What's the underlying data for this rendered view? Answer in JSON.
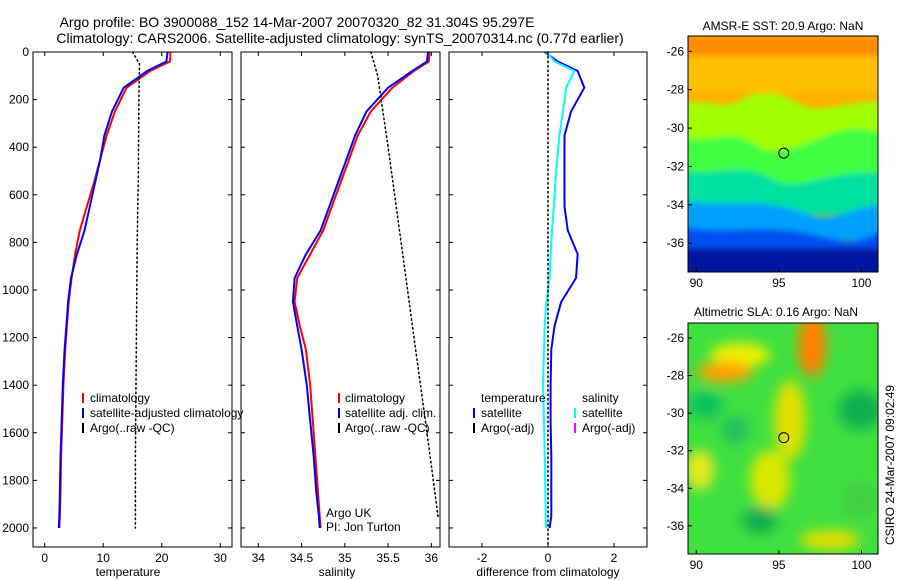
{
  "header": {
    "title_line1": "Argo profile: BO 3900088_152 14-Mar-2007 20070320_82 31.304S 95.297E",
    "title_line2": "Climatology: CARS2006. Satellite-adjusted climatology: synTS_20070314.nc (0.77d earlier)"
  },
  "side_label": "CSIRO 24-Mar-2007 09:02:49",
  "colors": {
    "red": "#ff0000",
    "blue": "#0000ff",
    "cyan": "#00ffff",
    "magenta": "#ff00ff",
    "black": "#000000"
  },
  "chart_data": [
    {
      "id": "temperature",
      "type": "line",
      "xlabel": "temperature",
      "xlim": [
        -2,
        32
      ],
      "ylim": [
        2080,
        0
      ],
      "xticks": [
        0,
        10,
        20,
        30
      ],
      "yticks": [
        0,
        200,
        400,
        600,
        800,
        1000,
        1200,
        1400,
        1600,
        1800,
        2000
      ],
      "y_reversed": true,
      "legend": [
        "climatology",
        "satellite-adjusted climatology",
        "Argo(..raw -QC)"
      ],
      "series": [
        {
          "name": "climatology",
          "color": "#ff0000",
          "style": "solid",
          "x": [
            21.5,
            21.4,
            18,
            14,
            12,
            10.6,
            9.5,
            8.4,
            7.2,
            6,
            5.2,
            4.6,
            4.1,
            3.8,
            3.5,
            3.2,
            3,
            2.8,
            2.7,
            2.6,
            2.5
          ],
          "y": [
            0,
            40,
            80,
            150,
            250,
            350,
            450,
            550,
            650,
            750,
            850,
            950,
            1050,
            1150,
            1250,
            1400,
            1550,
            1700,
            1850,
            1950,
            2000
          ]
        },
        {
          "name": "satellite-adjusted climatology",
          "color": "#0000ff",
          "style": "solid",
          "x": [
            21,
            20.8,
            17.5,
            13.5,
            11.5,
            10.2,
            9.5,
            8.6,
            7.7,
            6.8,
            5.5,
            4.5,
            4,
            3.7,
            3.4,
            3.1,
            2.9,
            2.7,
            2.6,
            2.5,
            2.4
          ],
          "y": [
            0,
            40,
            80,
            150,
            250,
            350,
            450,
            550,
            650,
            750,
            850,
            950,
            1050,
            1150,
            1250,
            1400,
            1550,
            1700,
            1850,
            1950,
            2000
          ]
        },
        {
          "name": "Argo(..raw -QC)",
          "color": "#000000",
          "style": "dotted",
          "x": [
            15,
            16.2,
            16.1,
            16,
            15.8,
            15.7,
            15.6,
            15.5,
            15.5
          ],
          "y": [
            0,
            50,
            200,
            500,
            800,
            1100,
            1400,
            1700,
            2000
          ]
        }
      ]
    },
    {
      "id": "salinity",
      "type": "line",
      "xlabel": "salinity",
      "xlim": [
        33.8,
        36.1
      ],
      "ylim": [
        2080,
        0
      ],
      "xticks": [
        34,
        34.5,
        35,
        35.5,
        36
      ],
      "yticks": [
        0,
        200,
        400,
        600,
        800,
        1000,
        1200,
        1400,
        1600,
        1800,
        2000
      ],
      "y_reversed": true,
      "legend": [
        "climatology",
        "satellite adj. clim.",
        "Argo(..raw -QC)"
      ],
      "annotation": [
        "Argo UK",
        "PI: Jon Turton"
      ],
      "series": [
        {
          "name": "climatology",
          "color": "#ff0000",
          "style": "solid",
          "x": [
            35.98,
            35.97,
            35.8,
            35.55,
            35.3,
            35.15,
            35.05,
            34.95,
            34.85,
            34.75,
            34.6,
            34.45,
            34.42,
            34.48,
            34.55,
            34.6,
            34.63,
            34.66,
            34.69,
            34.71,
            34.72
          ],
          "y": [
            0,
            40,
            80,
            150,
            250,
            350,
            450,
            550,
            650,
            750,
            850,
            950,
            1050,
            1150,
            1250,
            1400,
            1550,
            1700,
            1850,
            1950,
            2000
          ]
        },
        {
          "name": "satellite adj. clim.",
          "color": "#0000ff",
          "style": "solid",
          "x": [
            35.96,
            35.95,
            35.78,
            35.5,
            35.25,
            35.12,
            35.02,
            34.92,
            34.82,
            34.72,
            34.55,
            34.42,
            34.4,
            34.45,
            34.5,
            34.56,
            34.6,
            34.64,
            34.67,
            34.7,
            34.71
          ],
          "y": [
            0,
            40,
            80,
            150,
            250,
            350,
            450,
            550,
            650,
            750,
            850,
            950,
            1050,
            1150,
            1250,
            1400,
            1550,
            1700,
            1850,
            1950,
            2000
          ]
        },
        {
          "name": "Argo(..raw -QC)",
          "color": "#000000",
          "style": "dotted",
          "x": [
            35.3,
            35.38,
            35.5,
            35.65,
            35.8,
            35.95,
            36.08
          ],
          "y": [
            0,
            100,
            400,
            800,
            1200,
            1600,
            1960
          ]
        }
      ]
    },
    {
      "id": "difference",
      "type": "line",
      "xlabel": "difference from climatology",
      "xlim": [
        -3,
        3
      ],
      "ylim": [
        2080,
        0
      ],
      "xticks": [
        -2,
        0,
        2
      ],
      "yticks": [
        0,
        200,
        400,
        600,
        800,
        1000,
        1200,
        1400,
        1600,
        1800,
        2000
      ],
      "y_reversed": true,
      "legend_groups": [
        {
          "title": "temperature",
          "entries": [
            "satellite",
            "Argo(-adj)"
          ]
        },
        {
          "title": "salinity",
          "entries": [
            "satellite",
            "Argo(-adj)"
          ]
        }
      ],
      "series": [
        {
          "name": "temperature satellite",
          "color": "#0000ff",
          "style": "solid",
          "x": [
            -0.1,
            0.3,
            0.9,
            1.1,
            0.7,
            0.5,
            0.5,
            0.5,
            0.5,
            0.6,
            0.9,
            0.85,
            0.4,
            0.2,
            0.1,
            0.08,
            0.08,
            0.1,
            0.1,
            0.1,
            0.05
          ],
          "y": [
            0,
            40,
            80,
            150,
            250,
            350,
            450,
            550,
            650,
            750,
            850,
            950,
            1050,
            1150,
            1250,
            1400,
            1550,
            1700,
            1850,
            1950,
            2000
          ]
        },
        {
          "name": "salinity satellite",
          "color": "#00ffff",
          "style": "solid",
          "x": [
            -0.05,
            0.2,
            0.8,
            0.55,
            0.45,
            0.35,
            0.28,
            0.22,
            0.18,
            0.12,
            0.08,
            0.05,
            -0.05,
            -0.1,
            -0.12,
            -0.15,
            -0.12,
            -0.1,
            -0.08,
            -0.07,
            -0.06
          ],
          "y": [
            0,
            40,
            80,
            150,
            250,
            350,
            450,
            550,
            650,
            750,
            850,
            950,
            1050,
            1150,
            1250,
            1400,
            1550,
            1700,
            1850,
            1950,
            2000
          ]
        },
        {
          "name": "zero line",
          "color": "#000000",
          "style": "dotted",
          "x": [
            0,
            0
          ],
          "y": [
            0,
            2080
          ]
        }
      ]
    },
    {
      "id": "sst-map",
      "type": "heatmap",
      "title": "AMSR-E SST: 20.9 Argo: NaN",
      "xlim": [
        89.5,
        101
      ],
      "ylim": [
        -37.5,
        -25.2
      ],
      "xticks": [
        90,
        95,
        100
      ],
      "yticks": [
        -26,
        -28,
        -30,
        -32,
        -34,
        -36
      ],
      "marker": {
        "lon": 95.297,
        "lat": -31.304
      }
    },
    {
      "id": "sla-map",
      "type": "heatmap",
      "title": "Altimetric SLA: 0.16 Argo: NaN",
      "xlim": [
        89.5,
        101
      ],
      "ylim": [
        -37.5,
        -25.2
      ],
      "xticks": [
        90,
        95,
        100
      ],
      "yticks": [
        -26,
        -28,
        -30,
        -32,
        -34,
        -36
      ],
      "marker": {
        "lon": 95.297,
        "lat": -31.304
      }
    }
  ]
}
